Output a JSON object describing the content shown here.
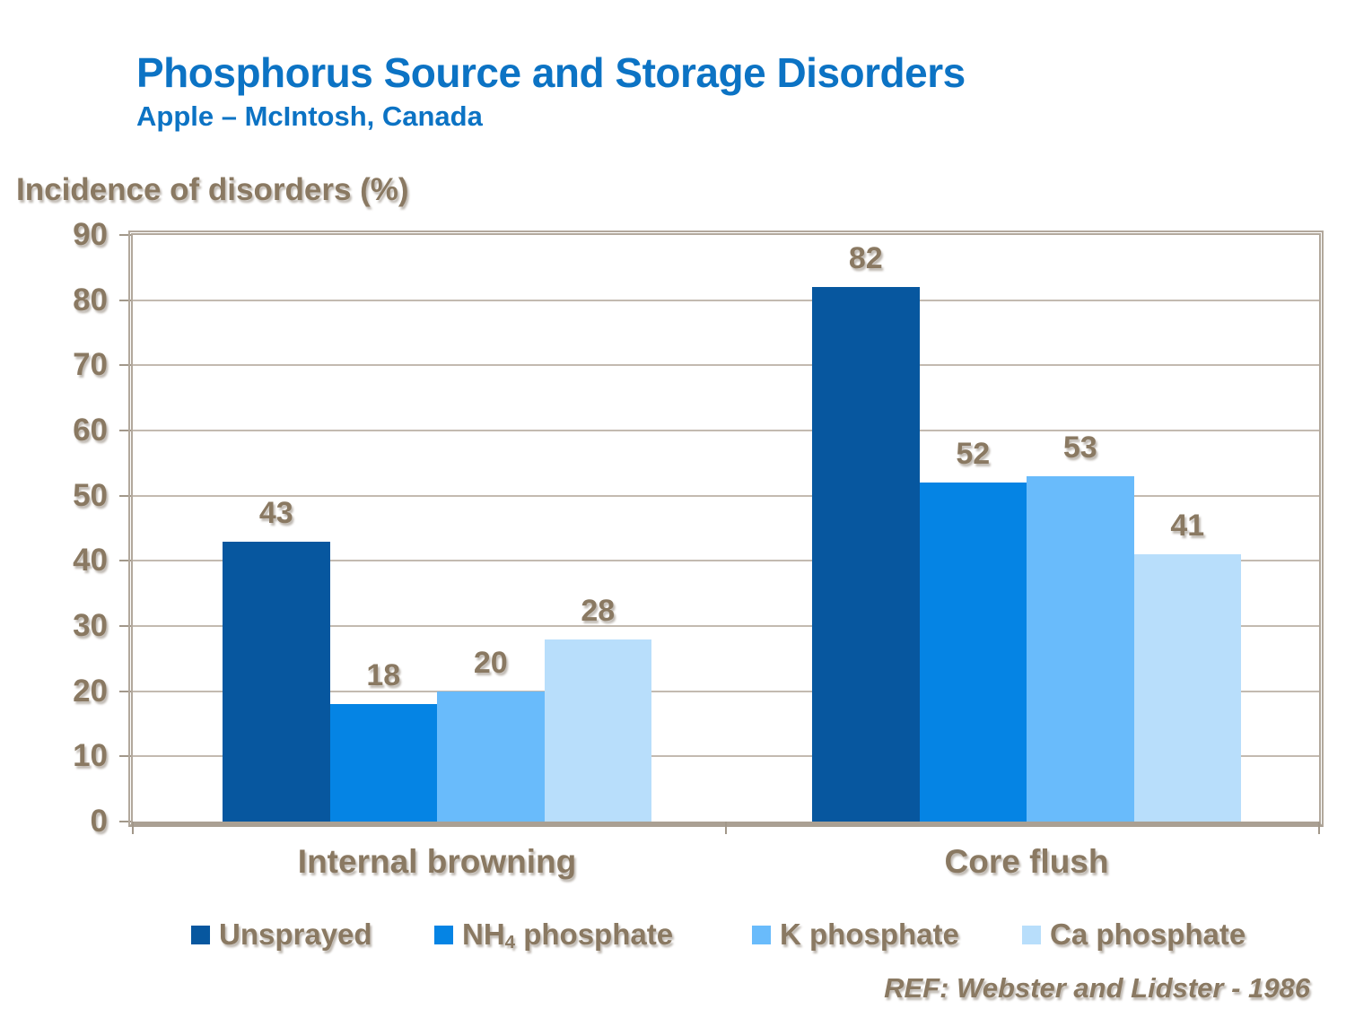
{
  "slide": {
    "title": "Phosphorus Source and Storage Disorders",
    "subtitle": "Apple – McIntosh, Canada"
  },
  "y_axis_title": "Incidence of disorders (%)",
  "reference": "REF: Webster and Lidster - 1986",
  "colors": {
    "title_blue": "#0C73C4",
    "text_brown": "#8A7962",
    "plot_border_tan": "#B2A89C",
    "gridline_tan": "#C3BAB0",
    "series_unsprayed": "#07579F",
    "series_nh4_phosphate": "#0584E4",
    "series_k_phosphate": "#69BBFB",
    "series_ca_phosphate": "#B8DEFB"
  },
  "chart_data": {
    "type": "bar",
    "title": "Phosphorus Source and Storage Disorders",
    "subtitle": "Apple – McIntosh, Canada",
    "ylabel": "Incidence of disorders (%)",
    "xlabel": "",
    "categories": [
      "Internal browning",
      "Core flush"
    ],
    "series": [
      {
        "name": "Unsprayed",
        "color": "#07579F",
        "values": [
          43,
          82
        ]
      },
      {
        "name": "NH4 phosphate",
        "color": "#0584E4",
        "values": [
          18,
          52
        ]
      },
      {
        "name": "K phosphate",
        "color": "#69BBFB",
        "values": [
          20,
          53
        ]
      },
      {
        "name": "Ca phosphate",
        "color": "#B8DEFB",
        "values": [
          28,
          41
        ]
      }
    ],
    "ylim": [
      0,
      90
    ],
    "ytick_step": 10,
    "grid": true,
    "legend_position": "bottom",
    "value_labels_shown": true
  },
  "legend": {
    "items": [
      {
        "text": "Unsprayed"
      },
      {
        "pre": "NH",
        "sub": "4",
        "post": " phosphate"
      },
      {
        "text": "K phosphate"
      },
      {
        "text": "Ca phosphate"
      }
    ]
  }
}
